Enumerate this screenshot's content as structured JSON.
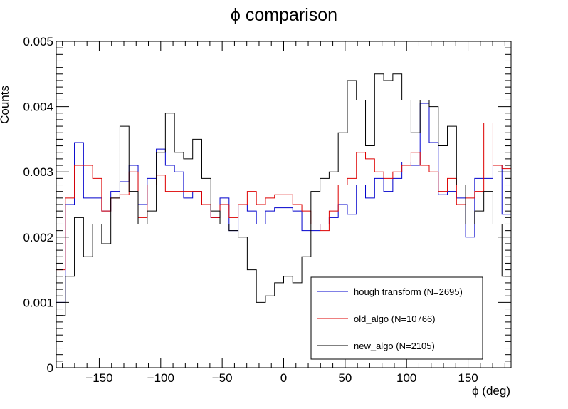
{
  "chart_data": {
    "type": "line",
    "style": "step-histogram",
    "title": "ϕ comparison",
    "xlabel": "ϕ (deg)",
    "ylabel": "Counts",
    "xlim": [
      -185,
      185
    ],
    "ylim": [
      0,
      0.005
    ],
    "xticks": [
      -150,
      -100,
      -50,
      0,
      50,
      100,
      150
    ],
    "xtick_labels": [
      "−150",
      "−100",
      "−50",
      "0",
      "50",
      "100",
      "150"
    ],
    "yticks": [
      0,
      0.001,
      0.002,
      0.003,
      0.004,
      0.005
    ],
    "ytick_labels": [
      "0",
      "0.001",
      "0.002",
      "0.003",
      "0.004",
      "0.005"
    ],
    "bin_edges": [
      -185,
      -177.6,
      -170.2,
      -162.8,
      -155.4,
      -148,
      -140.6,
      -133.2,
      -125.8,
      -118.4,
      -111,
      -103.6,
      -96.2,
      -88.8,
      -81.4,
      -74,
      -66.6,
      -59.2,
      -51.8,
      -44.4,
      -37,
      -29.6,
      -22.2,
      -14.8,
      -7.4,
      0,
      7.4,
      14.8,
      22.2,
      29.6,
      37,
      44.4,
      51.8,
      59.2,
      66.6,
      74,
      81.4,
      88.8,
      96.2,
      103.6,
      111,
      118.4,
      125.8,
      133.2,
      140.6,
      148,
      155.4,
      162.8,
      170.2,
      177.6,
      185
    ],
    "legend_position": "bottom-right",
    "grid": false,
    "series": [
      {
        "name": "hough transform (N=2695)",
        "color": "#0000cc",
        "values": [
          0.001,
          0.0025,
          0.00345,
          0.0026,
          0.0026,
          0.0024,
          0.0027,
          0.00285,
          0.0031,
          0.0025,
          0.0029,
          0.00335,
          0.0031,
          0.003,
          0.0026,
          0.0027,
          0.0025,
          0.0023,
          0.0026,
          0.0021,
          0.0025,
          0.0024,
          0.0022,
          0.0024,
          0.00245,
          0.00245,
          0.0024,
          0.0021,
          0.0021,
          0.0022,
          0.0023,
          0.0025,
          0.00235,
          0.0028,
          0.0026,
          0.0029,
          0.0027,
          0.0029,
          0.00315,
          0.0031,
          0.00405,
          0.00345,
          0.00265,
          0.0027,
          0.0026,
          0.002,
          0.0029,
          0.0029,
          0.0031,
          0.00235,
          0.00085
        ]
      },
      {
        "name": "old_algo (N=10766)",
        "color": "#dd0000",
        "values": [
          0.0015,
          0.0026,
          0.0031,
          0.0031,
          0.0029,
          0.0024,
          0.0026,
          0.00265,
          0.003,
          0.0023,
          0.0028,
          0.00295,
          0.0027,
          0.0027,
          0.0027,
          0.0027,
          0.0025,
          0.0023,
          0.0025,
          0.0023,
          0.0025,
          0.0027,
          0.0025,
          0.0026,
          0.00265,
          0.00265,
          0.0025,
          0.0024,
          0.0022,
          0.0021,
          0.0024,
          0.0028,
          0.0029,
          0.0033,
          0.0032,
          0.003,
          0.0029,
          0.003,
          0.0031,
          0.0033,
          0.0031,
          0.003,
          0.0027,
          0.0029,
          0.0025,
          0.0026,
          0.0027,
          0.00375,
          0.0031,
          0.00305,
          0.00095
        ]
      },
      {
        "name": "new_algo (N=2105)",
        "color": "#000000",
        "values": [
          0.0008,
          0.0014,
          0.0023,
          0.0017,
          0.0022,
          0.0019,
          0.0026,
          0.0037,
          0.0027,
          0.0022,
          0.0024,
          0.0033,
          0.0039,
          0.0033,
          0.0032,
          0.0035,
          0.0029,
          0.0024,
          0.0022,
          0.0021,
          0.002,
          0.0015,
          0.001,
          0.0011,
          0.0013,
          0.0014,
          0.0013,
          0.0017,
          0.0027,
          0.0029,
          0.003,
          0.0036,
          0.0044,
          0.0041,
          0.0034,
          0.0045,
          0.0044,
          0.0045,
          0.0041,
          0.0036,
          0.0041,
          0.004,
          0.0034,
          0.0037,
          0.0028,
          0.0022,
          0.0024,
          0.0027,
          0.0022,
          0.0014,
          0.0006
        ]
      }
    ]
  }
}
